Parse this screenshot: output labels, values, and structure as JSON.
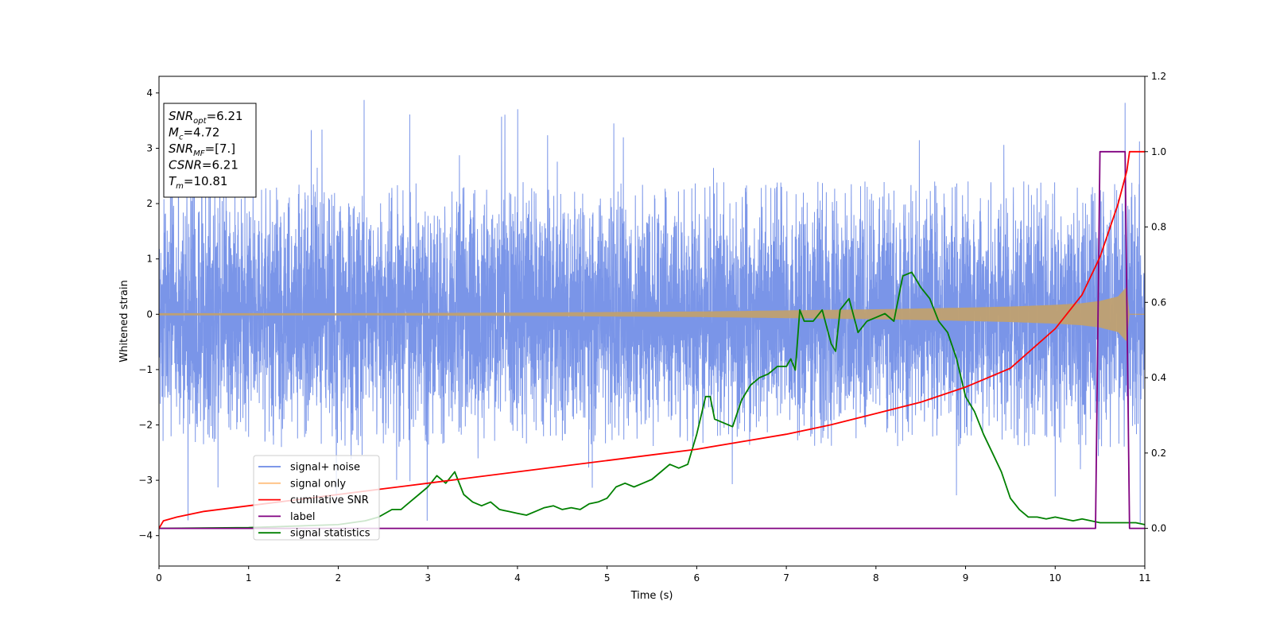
{
  "chart_data": {
    "type": "line",
    "xlabel": "Time (s)",
    "ylabel": "Whitened strain",
    "xlim": [
      0,
      11
    ],
    "ylim": [
      -4.55,
      4.3
    ],
    "y2lim": [
      -0.1,
      1.2
    ],
    "xticks": [
      0,
      1,
      2,
      3,
      4,
      5,
      6,
      7,
      8,
      9,
      10,
      11
    ],
    "yticks": [
      -4,
      -3,
      -2,
      -1,
      0,
      1,
      2,
      3,
      4
    ],
    "y2ticks": [
      0.0,
      0.2,
      0.4,
      0.6,
      0.8,
      1.0,
      1.2
    ],
    "y2tick_labels": [
      "0.0",
      "0.2",
      "0.4",
      "0.6",
      "0.8",
      "1.0",
      "1.2"
    ],
    "grid": false,
    "legend_position": "lower-left",
    "info_box": [
      {
        "base": "SNR",
        "sub": "opt",
        "val": "=6.21"
      },
      {
        "base": "M",
        "sub": "c",
        "val": "=4.72"
      },
      {
        "base": "SNR",
        "sub": "MF",
        "val": "=[7.]"
      },
      {
        "base": "CSNR",
        "sub": "",
        "val": "=6.21"
      },
      {
        "base": "T",
        "sub": "m",
        "val": "=10.81"
      }
    ],
    "series": [
      {
        "name": "signal+ noise",
        "axis": "left",
        "color": "#6b8ae6",
        "description": "dense whitened noise, amplitude roughly within [-2.4, 2.4] with spikes to about +3.95 and -4.1",
        "envelope": {
          "lower": -2.4,
          "upper": 2.4,
          "max_spike": 3.95,
          "min_spike": -4.1
        }
      },
      {
        "name": "signal only",
        "axis": "left",
        "color": "#ffa500",
        "description": "chirp signal, amplitude growing from ~0.02 to ~0.6 before merger near t=10.81",
        "envelope_amplitude": {
          "t": [
            0,
            2,
            4,
            6,
            7,
            8,
            9,
            9.5,
            10,
            10.3,
            10.5,
            10.7,
            10.8,
            10.83
          ],
          "a": [
            0.02,
            0.02,
            0.03,
            0.05,
            0.07,
            0.09,
            0.12,
            0.14,
            0.17,
            0.2,
            0.24,
            0.32,
            0.5,
            0
          ]
        }
      },
      {
        "name": "cumilative SNR",
        "axis": "right",
        "color": "#ff0000",
        "x": [
          0,
          0.05,
          0.2,
          0.5,
          1,
          1.5,
          2,
          2.5,
          3,
          3.5,
          4,
          4.5,
          5,
          5.5,
          6,
          6.5,
          7,
          7.5,
          8,
          8.5,
          9,
          9.5,
          10,
          10.3,
          10.5,
          10.7,
          10.8,
          10.83,
          11
        ],
        "y": [
          0.0,
          0.02,
          0.03,
          0.045,
          0.06,
          0.075,
          0.09,
          0.105,
          0.12,
          0.135,
          0.15,
          0.165,
          0.18,
          0.195,
          0.21,
          0.23,
          0.25,
          0.275,
          0.305,
          0.335,
          0.375,
          0.425,
          0.53,
          0.62,
          0.72,
          0.86,
          0.95,
          1.0,
          1.0
        ]
      },
      {
        "name": "label",
        "axis": "right",
        "color": "#800080",
        "x": [
          0,
          10.45,
          10.5,
          10.78,
          10.83,
          11
        ],
        "y": [
          0,
          0,
          1,
          1,
          0,
          0
        ]
      },
      {
        "name": "signal statistics",
        "axis": "right",
        "color": "#008000",
        "x": [
          0,
          1,
          2,
          2.3,
          2.45,
          2.6,
          2.7,
          2.8,
          2.9,
          3.0,
          3.1,
          3.2,
          3.3,
          3.4,
          3.5,
          3.6,
          3.7,
          3.8,
          3.9,
          4.0,
          4.1,
          4.2,
          4.3,
          4.4,
          4.5,
          4.6,
          4.7,
          4.8,
          4.9,
          5.0,
          5.1,
          5.2,
          5.3,
          5.4,
          5.5,
          5.6,
          5.7,
          5.8,
          5.9,
          6.0,
          6.1,
          6.15,
          6.2,
          6.3,
          6.4,
          6.5,
          6.6,
          6.7,
          6.8,
          6.9,
          7.0,
          7.05,
          7.1,
          7.15,
          7.2,
          7.3,
          7.4,
          7.5,
          7.55,
          7.6,
          7.7,
          7.8,
          7.9,
          8.0,
          8.1,
          8.2,
          8.3,
          8.4,
          8.5,
          8.6,
          8.7,
          8.8,
          8.9,
          9.0,
          9.1,
          9.2,
          9.3,
          9.4,
          9.5,
          9.6,
          9.7,
          9.8,
          9.9,
          10.0,
          10.1,
          10.2,
          10.3,
          10.4,
          10.5,
          10.6,
          10.7,
          10.8,
          10.9,
          11.0
        ],
        "y": [
          0.0,
          0.002,
          0.01,
          0.02,
          0.03,
          0.05,
          0.05,
          0.07,
          0.09,
          0.11,
          0.14,
          0.12,
          0.15,
          0.09,
          0.07,
          0.06,
          0.07,
          0.05,
          0.045,
          0.04,
          0.035,
          0.045,
          0.055,
          0.06,
          0.05,
          0.055,
          0.05,
          0.065,
          0.07,
          0.08,
          0.11,
          0.12,
          0.11,
          0.12,
          0.13,
          0.15,
          0.17,
          0.16,
          0.17,
          0.25,
          0.35,
          0.35,
          0.29,
          0.28,
          0.27,
          0.34,
          0.38,
          0.4,
          0.41,
          0.43,
          0.43,
          0.45,
          0.42,
          0.58,
          0.55,
          0.55,
          0.58,
          0.49,
          0.47,
          0.58,
          0.61,
          0.52,
          0.55,
          0.56,
          0.57,
          0.55,
          0.67,
          0.68,
          0.64,
          0.61,
          0.55,
          0.52,
          0.45,
          0.35,
          0.31,
          0.25,
          0.2,
          0.15,
          0.08,
          0.05,
          0.03,
          0.03,
          0.025,
          0.03,
          0.025,
          0.02,
          0.025,
          0.02,
          0.015,
          0.015,
          0.015,
          0.015,
          0.015,
          0.01
        ]
      }
    ]
  }
}
